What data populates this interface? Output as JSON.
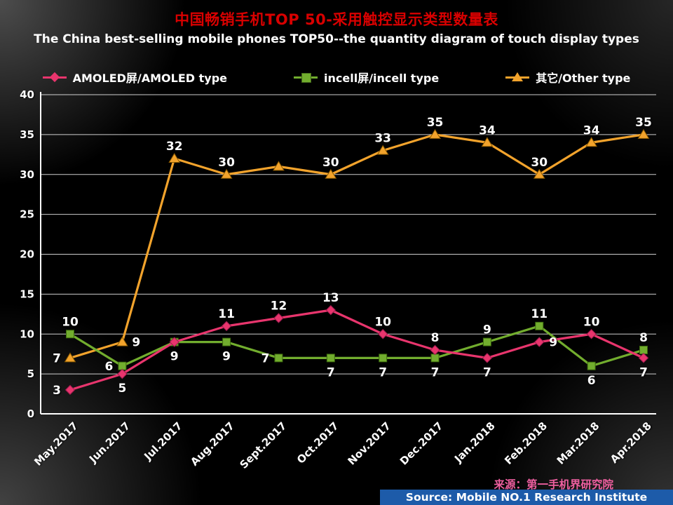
{
  "header": {
    "title_cn": "中国畅销手机TOP 50-采用触控显示类型数量表",
    "title_en": "The China best-selling mobile phones TOP50--the quantity diagram of touch display types"
  },
  "footer": {
    "source_cn": "来源：第一手机界研究院",
    "source_en": "Source: Mobile NO.1 Research Institute"
  },
  "chart_data": {
    "type": "line",
    "title": "中国畅销手机TOP 50-采用触控显示类型数量表",
    "subtitle": "The China best-selling mobile phones TOP50--the quantity diagram of touch display types",
    "categories": [
      "May.2017",
      "Jun.2017",
      "Jul.2017",
      "Aug.2017",
      "Sept.2017",
      "Oct.2017",
      "Nov.2017",
      "Dec.2017",
      "Jan.2018",
      "Feb.2018",
      "Mar.2018",
      "Apr.2018"
    ],
    "ylim": [
      0,
      40
    ],
    "ytick_step": 5,
    "yticks": [
      0,
      5,
      10,
      15,
      20,
      25,
      30,
      35,
      40
    ],
    "grid": true,
    "legend_position": "top",
    "series": [
      {
        "id": "amoled",
        "name": "AMOLED屏/AMOLED type",
        "color": "#e8356d",
        "marker": "diamond",
        "values": [
          3,
          5,
          9,
          11,
          12,
          13,
          10,
          8,
          7,
          9,
          10,
          7
        ],
        "labels": [
          "3",
          "5",
          "",
          "11",
          "12",
          "13",
          "10",
          "8",
          "7",
          "9",
          "10",
          "7"
        ],
        "label_pos": [
          "left",
          "below",
          "none",
          "above",
          "above",
          "above",
          "above",
          "above",
          "below",
          "right",
          "above",
          "below"
        ]
      },
      {
        "id": "incell",
        "name": "incell屏/incell type",
        "color": "#72ad2e",
        "marker": "square",
        "values": [
          10,
          6,
          9,
          9,
          7,
          7,
          7,
          7,
          9,
          11,
          6,
          8
        ],
        "labels": [
          "10",
          "6",
          "9",
          "9",
          "7",
          "7",
          "7",
          "7",
          "9",
          "11",
          "6",
          "8"
        ],
        "label_pos": [
          "above",
          "left",
          "below",
          "below",
          "left",
          "below",
          "below",
          "below",
          "above",
          "above",
          "below",
          "above"
        ]
      },
      {
        "id": "other",
        "name": "其它/Other type",
        "color": "#f2a32c",
        "marker": "triangle",
        "values": [
          7,
          9,
          32,
          30,
          31,
          30,
          33,
          35,
          34,
          30,
          34,
          35
        ],
        "labels": [
          "7",
          "9",
          "32",
          "30",
          "",
          "30",
          "33",
          "35",
          "34",
          "30",
          "34",
          "35"
        ],
        "label_pos": [
          "left",
          "right",
          "above",
          "above",
          "none",
          "above",
          "above",
          "above",
          "above",
          "above",
          "above",
          "above"
        ]
      }
    ]
  }
}
